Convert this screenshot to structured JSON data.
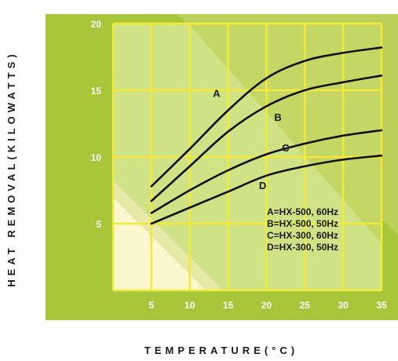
{
  "chart_data": {
    "type": "line",
    "xlabel": "TEMPERATURE(°C)",
    "ylabel": "HEAT REMOVAL(KILOWATTS)",
    "xlim": [
      0,
      35
    ],
    "ylim": [
      0,
      20
    ],
    "xticks": [
      "5",
      "10",
      "15",
      "20",
      "25",
      "30",
      "35"
    ],
    "yticks": [
      "5",
      "10",
      "15",
      "20"
    ],
    "grid": true,
    "series": [
      {
        "name": "A",
        "x": [
          5,
          10,
          15,
          20,
          25,
          30,
          35
        ],
        "y": [
          7.8,
          10.6,
          13.5,
          15.9,
          17.2,
          17.8,
          18.2
        ]
      },
      {
        "name": "B",
        "x": [
          5,
          10,
          15,
          20,
          25,
          30,
          35
        ],
        "y": [
          6.7,
          9.3,
          11.9,
          13.8,
          15.0,
          15.6,
          16.1
        ]
      },
      {
        "name": "C",
        "x": [
          5,
          10,
          15,
          20,
          25,
          30,
          35
        ],
        "y": [
          5.8,
          7.5,
          9.0,
          10.2,
          11.0,
          11.6,
          12.0
        ]
      },
      {
        "name": "D",
        "x": [
          5,
          10,
          15,
          20,
          25,
          30,
          35
        ],
        "y": [
          5.0,
          6.2,
          7.4,
          8.6,
          9.3,
          9.8,
          10.1
        ]
      }
    ],
    "legend": {
      "placement": "bottom-right",
      "entries": [
        "A=HX-500, 60Hz",
        "B=HX-500, 50Hz",
        "C=HX-300, 60Hz",
        "D=HX-300, 50Hz"
      ]
    },
    "colors": {
      "outer_band": "#a8c63a",
      "plot_bg": "#d6e694",
      "diag_band": "#bccf58",
      "light_triangle": "#fbf8cf",
      "grid": "#f4e83a",
      "line": "#111111"
    }
  }
}
